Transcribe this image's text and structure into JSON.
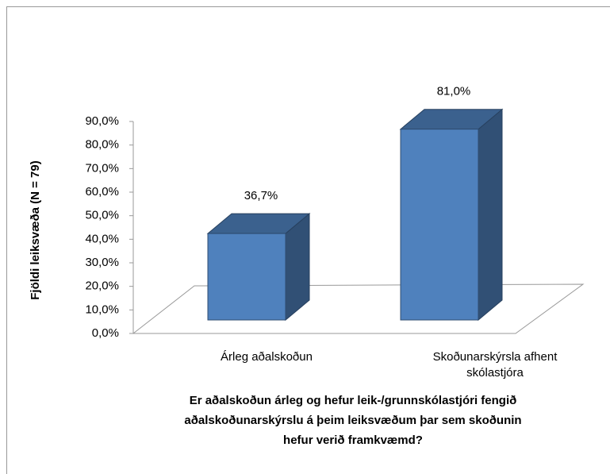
{
  "chart_data": {
    "type": "bar3d",
    "categories": [
      "Árleg aðalskoðun",
      "Skoðunarskýrsla afhent skólastjóra"
    ],
    "values": [
      36.7,
      81.0
    ],
    "value_labels": [
      "36,7%",
      "81,0%"
    ],
    "color": "#4f81bd",
    "ylabel": "Fjöldi leiksvæða (N = 79)",
    "xlabel": "Er aðalskoðun árleg og hefur leik-/grunnskólastjóri  fengið aðalskoðunarskýrslu  á þeim leiksvæðum þar sem skoðunin hefur verið framkvæmd?",
    "ylim": [
      0,
      90
    ],
    "yticks": [
      {
        "value": 0,
        "label": "0,0%"
      },
      {
        "value": 10,
        "label": "10,0%"
      },
      {
        "value": 20,
        "label": "20,0%"
      },
      {
        "value": 30,
        "label": "30,0%"
      },
      {
        "value": 40,
        "label": "40,0%"
      },
      {
        "value": 50,
        "label": "50,0%"
      },
      {
        "value": 60,
        "label": "60,0%"
      },
      {
        "value": 70,
        "label": "70,0%"
      },
      {
        "value": 80,
        "label": "80,0%"
      },
      {
        "value": 90,
        "label": "90,0%"
      }
    ]
  }
}
